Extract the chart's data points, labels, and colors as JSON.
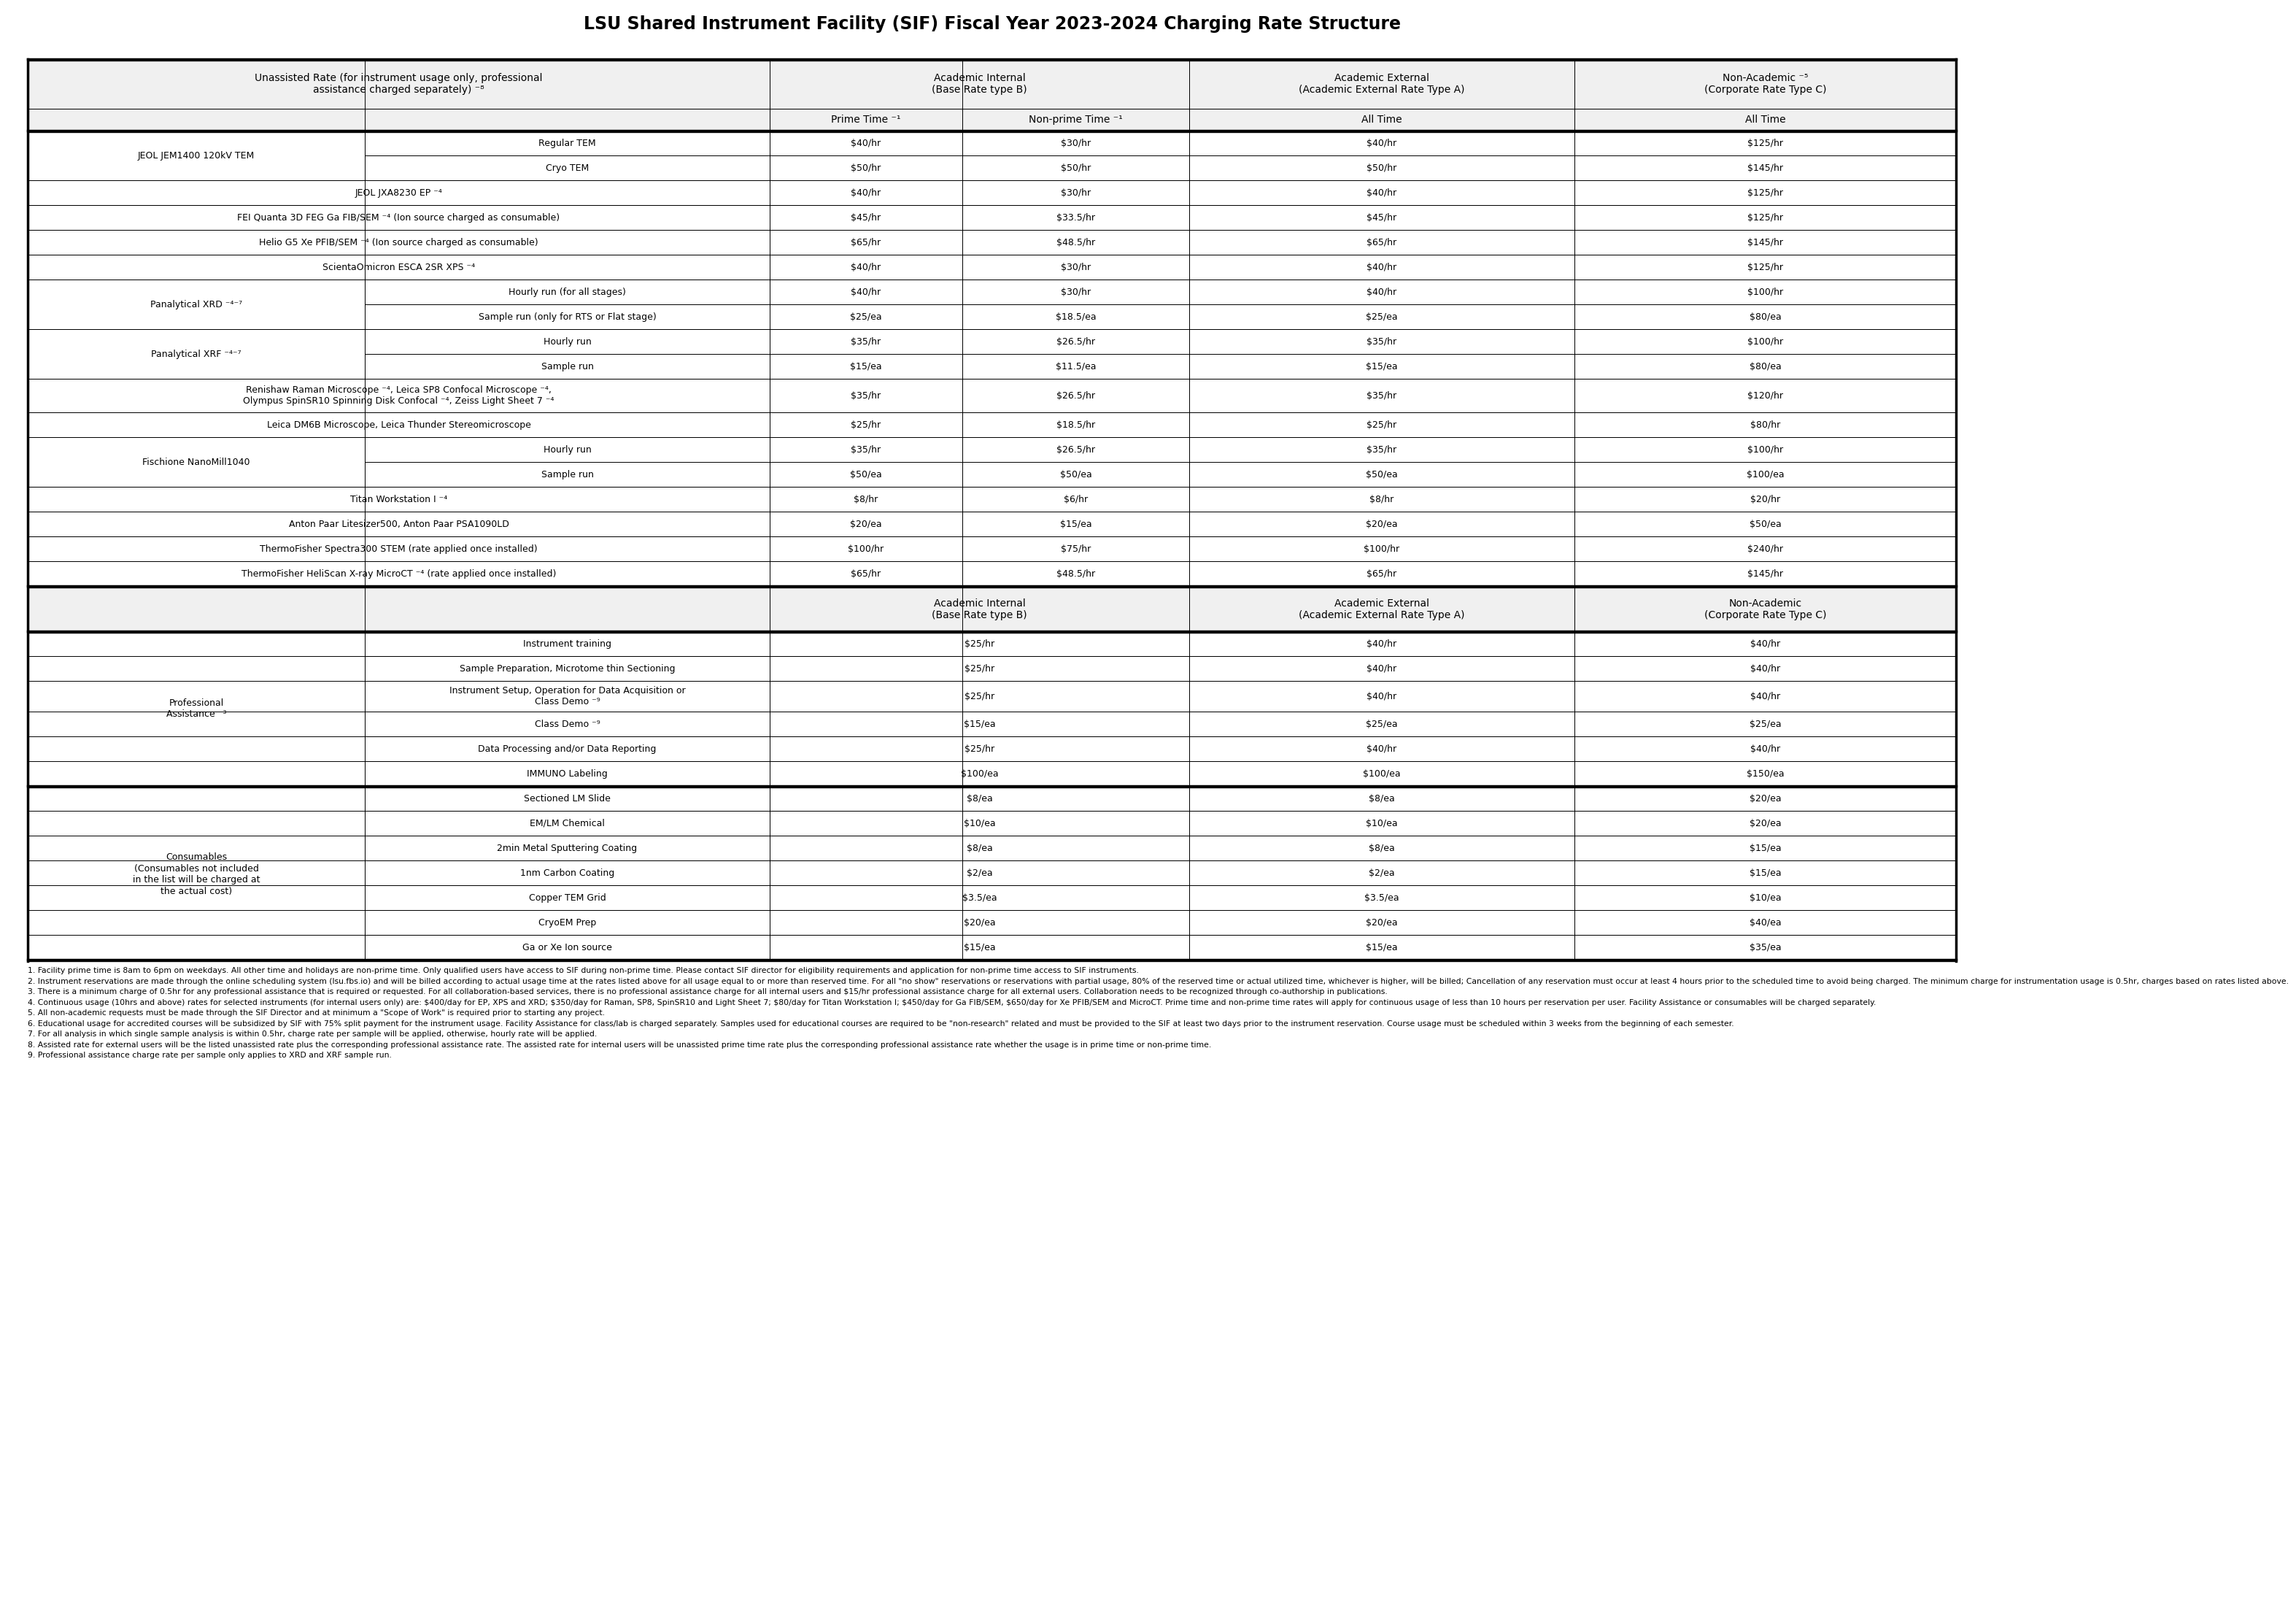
{
  "title": "LSU Shared Instrument Facility (SIF) Fiscal Year 2023-2024 Charging Rate Structure",
  "footnotes": [
    "1. Facility prime time is 8am to 6pm on weekdays. All other time and holidays are non-prime time. Only qualified users have access to SIF during non-prime time. Please contact SIF director for eligibility requirements and application for non-prime time access to SIF instruments.",
    "2. Instrument reservations are made through the online scheduling system (lsu.fbs.io) and will be billed according to actual usage time at the rates listed above for all usage equal to or more than reserved time. For all \"no show\" reservations or reservations with partial usage, 80% of the reserved time or actual utilized time, whichever is higher, will be billed; Cancellation of any reservation must occur at least 4 hours prior to the scheduled time to avoid being charged. The minimum charge for instrumentation usage is 0.5hr, charges based on rates listed above.",
    "3. There is a minimum charge of 0.5hr for any professional assistance that is required or requested. For all collaboration-based services, there is no professional assistance charge for all internal users and $15/hr professional assistance charge for all external users. Collaboration needs to be recognized through co-authorship in publications.",
    "4. Continuous usage (10hrs and above) rates for selected instruments (for internal users only) are: $400/day for EP, XPS and XRD; $350/day for Raman, SP8, SpinSR10 and Light Sheet 7; $80/day for Titan Workstation I; $450/day for Ga FIB/SEM, $650/day for Xe PFIB/SEM and MicroCT. Prime time and non-prime time rates will apply for continuous usage of less than 10 hours per reservation per user. Facility Assistance or consumables will be charged separately.",
    "5. All non-academic requests must be made through the SIF Director and at minimum a \"Scope of Work\" is required prior to starting any project.",
    "6. Educational usage for accredited courses will be subsidized by SIF with 75% split payment for the instrument usage. Facility Assistance for class/lab is charged separately. Samples used for educational courses are required to be \"non-research\" related and must be provided to the SIF at least two days prior to the instrument reservation. Course usage must be scheduled within 3 weeks from the beginning of each semester.",
    "7. For all analysis in which single sample analysis is within 0.5hr, charge rate per sample will be applied, otherwise, hourly rate will be applied.",
    "8. Assisted rate for external users will be the listed unassisted rate plus the corresponding professional assistance rate. The assisted rate for internal users will be unassisted prime time rate plus the corresponding professional assistance rate whether the usage is in prime time or non-prime time.",
    "9. Professional assistance charge rate per sample only applies to XRD and XRF sample run."
  ]
}
